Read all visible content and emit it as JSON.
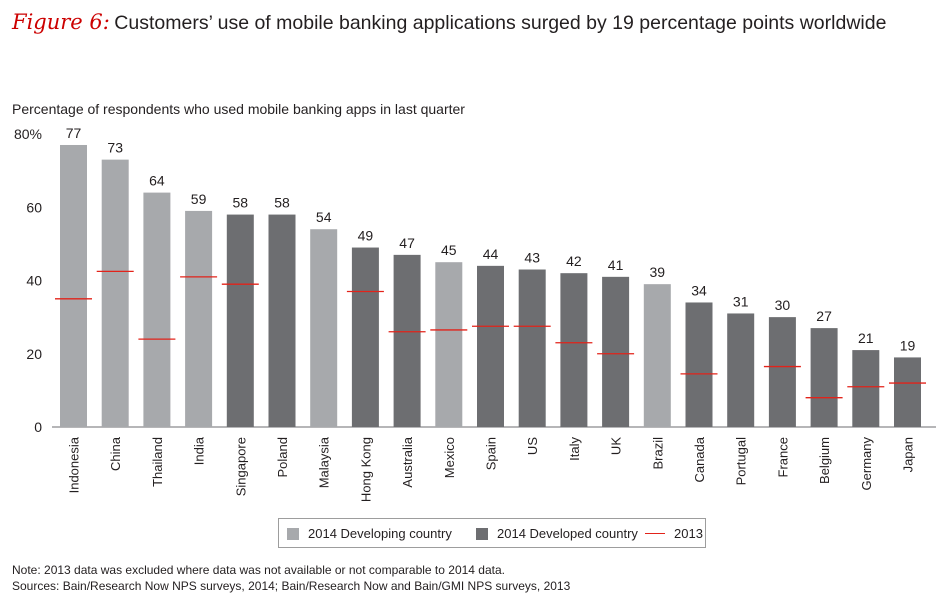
{
  "title": {
    "figure_label": "Figure 6:",
    "text": "Customers’ use of mobile banking applications surged by 19 percentage points worldwide"
  },
  "colors": {
    "developing": "#a7a9ac",
    "developed": "#6d6e71",
    "line_2013": "#e2231a",
    "figure_label": "#cc0000"
  },
  "chart_data": {
    "type": "bar",
    "title": "",
    "ylabel": "Percentage of respondents who used mobile banking apps in last quarter",
    "xlabel": "",
    "ylim": [
      0,
      80
    ],
    "yticks": [
      "0",
      "20",
      "40",
      "60",
      "80%"
    ],
    "grid": false,
    "legend_position": "bottom",
    "categories": [
      "Indonesia",
      "China",
      "Thailand",
      "India",
      "Singapore",
      "Poland",
      "Malaysia",
      "Hong Kong",
      "Australia",
      "Mexico",
      "Spain",
      "US",
      "Italy",
      "UK",
      "Brazil",
      "Canada",
      "Portugal",
      "France",
      "Belgium",
      "Germany",
      "Japan"
    ],
    "series": [
      {
        "name": "2014",
        "values": [
          77,
          73,
          64,
          59,
          58,
          58,
          54,
          49,
          47,
          45,
          44,
          43,
          42,
          41,
          39,
          34,
          31,
          30,
          27,
          21,
          19
        ],
        "group": [
          "developing",
          "developing",
          "developing",
          "developing",
          "developed",
          "developed",
          "developing",
          "developed",
          "developed",
          "developing",
          "developed",
          "developed",
          "developed",
          "developed",
          "developing",
          "developed",
          "developed",
          "developed",
          "developed",
          "developed",
          "developed"
        ]
      },
      {
        "name": "2013",
        "type": "marker",
        "values": [
          35,
          42.5,
          24,
          41,
          39,
          null,
          null,
          37,
          26,
          26.5,
          27.5,
          27.5,
          23,
          20,
          null,
          14.5,
          null,
          16.5,
          8,
          11,
          12
        ]
      }
    ]
  },
  "legend": {
    "developing": "2014 Developing country",
    "developed": "2014 Developed country",
    "y2013": "2013"
  },
  "notes": {
    "note": "Note: 2013 data was excluded where data was not available or not comparable to 2014 data.",
    "sources": "Sources: Bain/Research Now NPS surveys, 2014; Bain/Research Now and Bain/GMI NPS surveys, 2013"
  }
}
